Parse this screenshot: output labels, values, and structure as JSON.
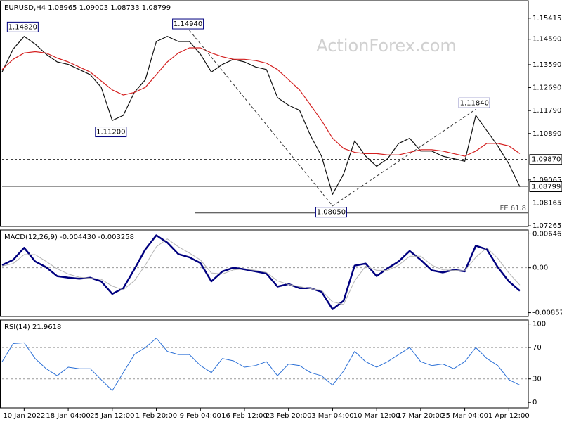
{
  "chart_data": [
    {
      "type": "line",
      "title": "EURUSD,H4  1.08965 1.09003 1.08733 1.08799",
      "watermark": "ActionForex.com",
      "ylim": [
        1.0724,
        1.161
      ],
      "yticks": [
        1.15415,
        {
          "value": 1.1459,
          "label": "1.14590"
        },
        {
          "value": 1.1359,
          "label": "1.13590"
        },
        {
          "value": 1.1269,
          "label": "1.12690"
        },
        {
          "value": 1.1179,
          "label": "1.11790"
        },
        {
          "value": 1.1089,
          "label": "1.10890"
        },
        1.09065,
        1.08165,
        1.07265
      ],
      "series": [
        {
          "color": "#111111",
          "values": [
            1.133,
            1.142,
            1.147,
            1.144,
            1.14,
            1.137,
            1.136,
            1.134,
            1.132,
            1.127,
            1.114,
            1.116,
            1.125,
            1.13,
            1.145,
            1.147,
            1.145,
            1.145,
            1.14,
            1.133,
            1.136,
            1.138,
            1.137,
            1.135,
            1.134,
            1.123,
            1.12,
            1.118,
            1.108,
            1.1,
            1.085,
            1.093,
            1.106,
            1.1,
            1.096,
            1.099,
            1.105,
            1.107,
            1.102,
            1.102,
            1.1,
            1.099,
            1.098,
            1.116,
            1.11,
            1.104,
            1.097,
            1.088
          ]
        },
        {
          "color": "#d42020",
          "values": [
            1.134,
            1.138,
            1.1405,
            1.141,
            1.1405,
            1.1385,
            1.137,
            1.135,
            1.133,
            1.1295,
            1.126,
            1.124,
            1.125,
            1.127,
            1.132,
            1.137,
            1.1405,
            1.1425,
            1.1425,
            1.1405,
            1.139,
            1.138,
            1.138,
            1.1375,
            1.1365,
            1.134,
            1.13,
            1.126,
            1.12,
            1.114,
            1.107,
            1.103,
            1.1015,
            1.101,
            1.101,
            1.1005,
            1.1005,
            1.1015,
            1.1025,
            1.1025,
            1.102,
            1.101,
            1.1,
            1.102,
            1.105,
            1.105,
            1.104,
            1.101
          ]
        }
      ],
      "annotations": [
        {
          "label": "1.14820",
          "value": 1.1482,
          "index": 2,
          "position": "above",
          "projection": false
        },
        {
          "label": "1.11200",
          "value": 1.112,
          "index": 10,
          "position": "below",
          "projection": false
        },
        {
          "label": "1.14940",
          "value": 1.1494,
          "index": 17,
          "position": "above",
          "projection": true
        },
        {
          "label": "1.08050",
          "value": 1.0805,
          "index": 30,
          "position": "below",
          "projection": true
        },
        {
          "label": "1.11840",
          "value": 1.1184,
          "index": 43,
          "position": "above",
          "projection": true
        }
      ],
      "levels": [
        {
          "value": 1.0987,
          "label": "1.09870",
          "style": "dashed"
        },
        {
          "value": 1.08799,
          "label": "1.08799",
          "style": "solid"
        }
      ],
      "projection_level": {
        "value": 1.0777,
        "label": "FE 61.8"
      }
    },
    {
      "type": "line",
      "title": "MACD(12,26,9) -0.004430 -0.003258",
      "ylim": [
        -0.0093,
        0.0072
      ],
      "yticks": [
        0.006468,
        {
          "value": 0,
          "label": "0.00"
        },
        -0.008573
      ],
      "levels": [
        0
      ],
      "series": [
        {
          "color": "#00007f",
          "width": 2.5,
          "values": [
            0.0005,
            0.0015,
            0.0038,
            0.0012,
            0.0001,
            -0.0016,
            -0.0019,
            -0.0021,
            -0.0019,
            -0.0026,
            -0.005,
            -0.0039,
            -0.0003,
            0.0035,
            0.0062,
            0.0048,
            0.0026,
            0.002,
            0.0009,
            -0.0026,
            -0.0007,
            0,
            -0.0003,
            -0.0007,
            -0.0011,
            -0.0036,
            -0.0031,
            -0.0039,
            -0.0039,
            -0.0046,
            -0.0079,
            -0.0063,
            0.0004,
            0.0008,
            -0.0016,
            -0.0001,
            0.0012,
            0.0032,
            0.0015,
            -0.0005,
            -0.0009,
            -0.0004,
            -0.0007,
            0.0042,
            0.0035,
            0.0001,
            -0.0026,
            -0.0044
          ]
        },
        {
          "color": "#b4b4b4",
          "width": 1,
          "values": [
            0.0003,
            0.0008,
            0.0025,
            0.0025,
            0.0012,
            -0.0002,
            -0.0012,
            -0.0018,
            -0.002,
            -0.0022,
            -0.0035,
            -0.0042,
            -0.0025,
            0.0005,
            0.004,
            0.0055,
            0.004,
            0.0028,
            0.0015,
            -0.001,
            -0.0012,
            -0.0004,
            -0.0002,
            -0.0005,
            -0.0009,
            -0.0025,
            -0.0032,
            -0.0036,
            -0.004,
            -0.0043,
            -0.0065,
            -0.007,
            -0.0025,
            0.0003,
            -0.0005,
            -0.0005,
            0.0005,
            0.0022,
            0.0022,
            0.0005,
            -0.0004,
            -0.0005,
            -0.0006,
            0.002,
            0.0038,
            0.0018,
            -0.001,
            -0.0033
          ]
        }
      ]
    },
    {
      "type": "line",
      "title": "RSI(14) 21.9618",
      "ylim": [
        -7,
        105
      ],
      "yticks": [
        100,
        70,
        30,
        0
      ],
      "levels": [
        70,
        30
      ],
      "categories": [
        null,
        null,
        "10 Jan 2022",
        null,
        null,
        null,
        "18 Jan 04:00",
        null,
        null,
        null,
        "25 Jan 12:00",
        null,
        null,
        null,
        "1 Feb 20:00",
        null,
        null,
        null,
        "9 Feb 04:00",
        null,
        null,
        null,
        "16 Feb 12:00",
        null,
        null,
        null,
        "23 Feb 20:00",
        null,
        null,
        null,
        "3 Mar 04:00",
        null,
        null,
        null,
        "10 Mar 12:00",
        null,
        null,
        null,
        "17 Mar 20:00",
        null,
        null,
        null,
        "25 Mar 04:00",
        null,
        null,
        null,
        "1 Apr 12:00",
        null
      ],
      "series": [
        {
          "color": "#2a6fd6",
          "width": 1,
          "values": [
            52,
            75,
            76,
            56,
            43,
            34,
            45,
            43,
            43,
            29,
            15,
            38,
            61,
            70,
            82,
            65,
            61,
            61,
            47,
            38,
            56,
            53,
            45,
            47,
            52,
            34,
            49,
            47,
            38,
            34,
            22,
            40,
            65,
            52,
            45,
            52,
            61,
            70,
            52,
            47,
            49,
            43,
            52,
            70,
            56,
            47,
            29,
            22
          ]
        }
      ]
    }
  ]
}
